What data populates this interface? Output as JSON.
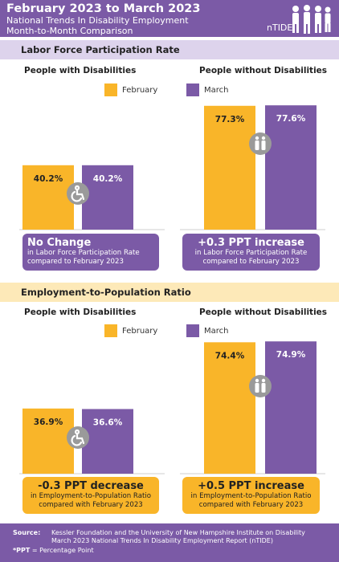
{
  "header": {
    "title": "February 2023 to March 2023",
    "subtitle1": "National Trends In Disability Employment",
    "subtitle2": "Month-to-Month Comparison",
    "logo_text": "nTIDE"
  },
  "colors": {
    "february": "#f9b529",
    "march": "#7b5aa6",
    "axis": "#cfcfcf"
  },
  "sections": [
    {
      "title": "Labor Force Participation Rate"
    },
    {
      "title": "Employment-to-Population Ratio"
    }
  ],
  "legend": {
    "february": "February",
    "march": "March"
  },
  "groups": {
    "with": "People with Disabilities",
    "without": "People without Disabilities"
  },
  "chart_data": [
    {
      "type": "bar",
      "title": "Labor Force Participation Rate",
      "categories": [
        "February",
        "March"
      ],
      "series": [
        {
          "name": "People with Disabilities",
          "values": [
            40.2,
            40.2
          ],
          "labels": [
            "40.2%",
            "40.2%"
          ],
          "icon": "wheelchair-icon"
        },
        {
          "name": "People without Disabilities",
          "values": [
            77.3,
            77.6
          ],
          "labels": [
            "77.3%",
            "77.6%"
          ],
          "icon": "people-icon"
        }
      ]
    },
    {
      "type": "bar",
      "title": "Employment-to-Population Ratio",
      "categories": [
        "February",
        "March"
      ],
      "series": [
        {
          "name": "People with Disabilities",
          "values": [
            36.9,
            36.6
          ],
          "labels": [
            "36.9%",
            "36.6%"
          ],
          "icon": "wheelchair-icon"
        },
        {
          "name": "People without Disabilities",
          "values": [
            74.4,
            74.9
          ],
          "labels": [
            "74.4%",
            "74.9%"
          ],
          "icon": "people-icon"
        }
      ]
    }
  ],
  "summaries": {
    "lfpr_with": {
      "big": "No Change",
      "line1": "in Labor Force Participation Rate",
      "line2": "compared to February 2023"
    },
    "lfpr_without": {
      "big": "+0.3 PPT increase",
      "line1": "in Labor Force Participation Rate",
      "line2": "compared to February 2023"
    },
    "epop_with": {
      "big": "-0.3 PPT decrease",
      "line1": "in Employment-to-Population Ratio",
      "line2": "compared with February 2023"
    },
    "epop_without": {
      "big": "+0.5 PPT increase",
      "line1": "in Employment-to-Population Ratio",
      "line2": "compared with February 2023"
    }
  },
  "footer": {
    "source_label": "Source:",
    "source_line1": "Kessler Foundation and the University of New Hampshire Institute on Disability",
    "source_line2": "March 2023 National Trends In Disability Employment Report (nTIDE)",
    "ppt_label": "*PPT",
    "ppt_text": " = Percentage Point"
  }
}
